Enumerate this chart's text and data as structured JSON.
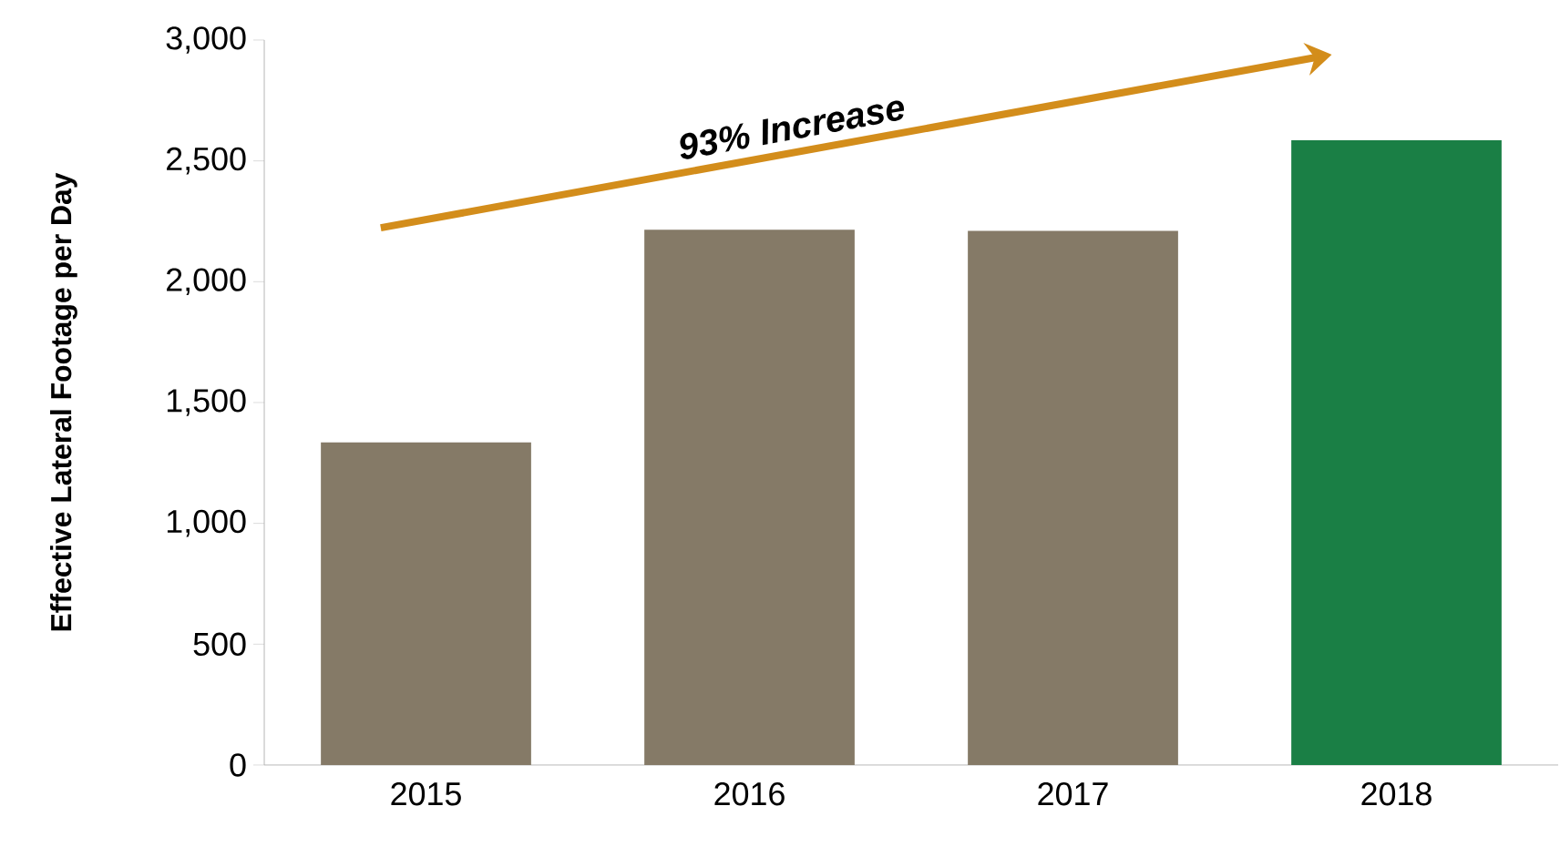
{
  "chart_data": {
    "type": "bar",
    "ylabel": "Effective Lateral Footage per Day",
    "categories": [
      "2015",
      "2016",
      "2017",
      "2018"
    ],
    "values": [
      1335,
      2215,
      2210,
      2585
    ],
    "colors": [
      "#857a67",
      "#857a67",
      "#857a67",
      "#1a7f45"
    ],
    "ylim": [
      0,
      3000
    ],
    "yticks": [
      0,
      500,
      {
        "value": 1000,
        "label": "1,000"
      },
      {
        "value": 1500,
        "label": "1,500"
      },
      {
        "value": 2000,
        "label": "2,000"
      },
      {
        "value": 2500,
        "label": "2,500"
      },
      {
        "value": 3000,
        "label": "3,000"
      }
    ],
    "annotations": [
      "93% Increase"
    ],
    "grid": false
  }
}
